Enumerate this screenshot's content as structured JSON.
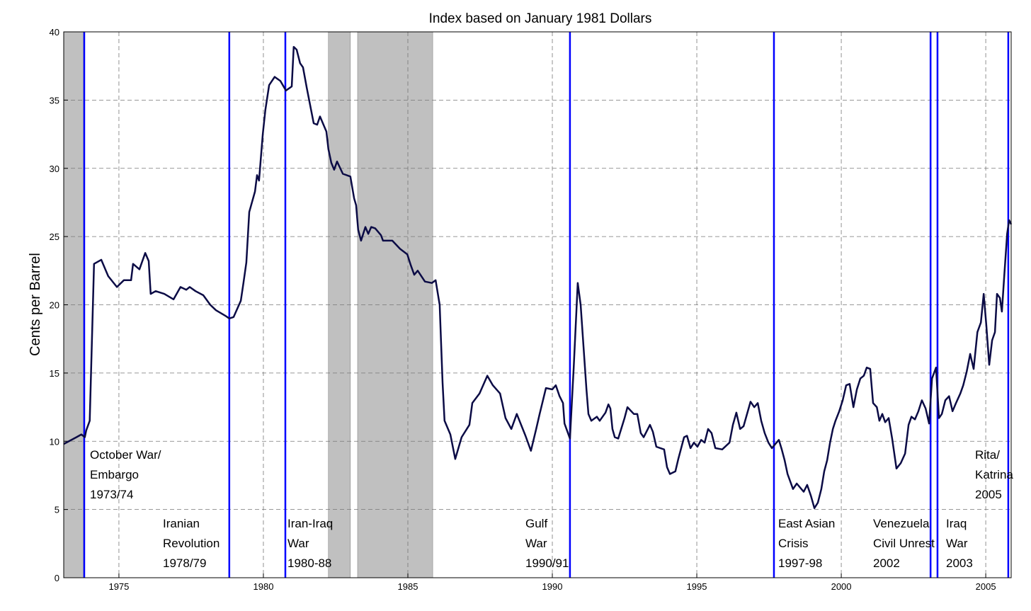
{
  "chart_data": {
    "type": "line",
    "title": "Index based on January 1981 Dollars",
    "y_label": "Cents per Barrel",
    "xlim": [
      1973.09,
      2005.88
    ],
    "xticks": [
      1975,
      1980,
      1985,
      1990,
      1995,
      2000,
      2005
    ],
    "ylim": [
      0,
      40
    ],
    "yticks": [
      0,
      5,
      10,
      15,
      20,
      25,
      30,
      35,
      40
    ],
    "grid": true,
    "shade_color": "#c0c0c0",
    "shaded_periods": [
      [
        1973.09,
        1973.77
      ],
      [
        1982.25,
        1983.01
      ],
      [
        1983.26,
        1985.86
      ]
    ],
    "event_color": "#0000ff",
    "events": [
      {
        "x": 1973.8,
        "label": [
          "October War/",
          "Embargo",
          "1973/74"
        ]
      },
      {
        "x": 1978.82,
        "label": [
          "Iranian",
          "Revolution",
          "1978/79"
        ]
      },
      {
        "x": 1980.76,
        "label": [
          "Iran-Iraq",
          "War",
          "1980-88"
        ]
      },
      {
        "x": 1990.61,
        "label": [
          "Gulf",
          "War",
          "1990/91"
        ]
      },
      {
        "x": 1997.67,
        "label": [
          "East Asian",
          "Crisis",
          "1997-98"
        ]
      },
      {
        "x": 2003.09,
        "label": [
          "Venezuela",
          "Civil Unrest",
          "2002"
        ]
      },
      {
        "x": 2003.33,
        "label": [
          "Iraq",
          "War",
          "2003"
        ]
      },
      {
        "x": 2005.78,
        "label": [
          "Rita/",
          "Katrina",
          "2005"
        ]
      }
    ],
    "x": [
      1973.09,
      1973.53,
      1973.7,
      1973.82,
      1973.87,
      1973.99,
      1974.14,
      1974.39,
      1974.63,
      1974.93,
      1975.17,
      1975.42,
      1975.49,
      1975.71,
      1975.91,
      1976.03,
      1976.1,
      1976.27,
      1976.57,
      1976.89,
      1977.13,
      1977.33,
      1977.45,
      1977.65,
      1977.92,
      1978.16,
      1978.36,
      1978.68,
      1978.82,
      1978.97,
      1979.22,
      1979.31,
      1979.41,
      1979.51,
      1979.71,
      1979.78,
      1979.85,
      1979.98,
      1980.07,
      1980.2,
      1980.39,
      1980.59,
      1980.78,
      1980.98,
      1981.05,
      1981.15,
      1981.27,
      1981.37,
      1981.5,
      1981.74,
      1981.86,
      1981.96,
      1982.18,
      1982.25,
      1982.35,
      1982.45,
      1982.55,
      1982.75,
      1983.01,
      1983.14,
      1983.21,
      1983.28,
      1983.38,
      1983.53,
      1983.63,
      1983.73,
      1983.87,
      1984.07,
      1984.14,
      1984.46,
      1984.73,
      1984.98,
      1985.1,
      1985.22,
      1985.34,
      1985.59,
      1985.83,
      1985.96,
      1986.1,
      1986.2,
      1986.27,
      1986.47,
      1986.64,
      1986.86,
      1987.13,
      1987.23,
      1987.48,
      1987.75,
      1987.94,
      1988.19,
      1988.38,
      1988.58,
      1988.77,
      1989.07,
      1989.26,
      1989.44,
      1989.56,
      1989.78,
      1990.0,
      1990.12,
      1990.25,
      1990.37,
      1990.42,
      1990.61,
      1990.74,
      1990.88,
      1990.98,
      1991.08,
      1991.18,
      1991.25,
      1991.35,
      1991.54,
      1991.64,
      1991.84,
      1991.94,
      1992.01,
      1992.08,
      1992.16,
      1992.28,
      1992.5,
      1992.6,
      1992.82,
      1992.94,
      1993.06,
      1993.16,
      1993.38,
      1993.48,
      1993.6,
      1993.87,
      1993.97,
      1994.07,
      1994.26,
      1994.36,
      1994.56,
      1994.66,
      1994.78,
      1994.9,
      1995.02,
      1995.15,
      1995.27,
      1995.39,
      1995.51,
      1995.64,
      1995.88,
      1996.13,
      1996.25,
      1996.37,
      1996.5,
      1996.62,
      1996.86,
      1996.99,
      1997.11,
      1997.23,
      1997.35,
      1997.48,
      1997.6,
      1997.72,
      1997.84,
      1997.94,
      1998.04,
      1998.14,
      1998.33,
      1998.46,
      1998.7,
      1998.82,
      1998.95,
      1999.07,
      1999.19,
      1999.31,
      1999.41,
      1999.51,
      1999.61,
      1999.71,
      1999.8,
      1999.93,
      2000.05,
      2000.17,
      2000.29,
      2000.42,
      2000.54,
      2000.66,
      2000.78,
      2000.88,
      2001.0,
      2001.1,
      2001.23,
      2001.32,
      2001.42,
      2001.52,
      2001.64,
      2001.76,
      2001.91,
      2002.06,
      2002.21,
      2002.33,
      2002.43,
      2002.55,
      2002.67,
      2002.79,
      2002.92,
      2003.04,
      2003.14,
      2003.28,
      2003.38,
      2003.48,
      2003.6,
      2003.73,
      2003.85,
      2003.97,
      2004.12,
      2004.22,
      2004.34,
      2004.46,
      2004.58,
      2004.71,
      2004.83,
      2004.93,
      2005.02,
      2005.12,
      2005.22,
      2005.32,
      2005.39,
      2005.49,
      2005.56,
      2005.64,
      2005.74,
      2005.81,
      2005.88
    ],
    "series": [
      {
        "color": "#0b0b45",
        "values": [
          9.8,
          10.3,
          10.5,
          10.3,
          10.8,
          11.5,
          23.0,
          23.3,
          22.1,
          21.3,
          21.8,
          21.8,
          23.0,
          22.6,
          23.8,
          23.2,
          20.8,
          21.0,
          20.8,
          20.4,
          21.3,
          21.1,
          21.3,
          21.0,
          20.7,
          20.0,
          19.6,
          19.2,
          19.0,
          19.1,
          20.3,
          21.6,
          23.1,
          26.8,
          28.3,
          29.5,
          29.1,
          32.5,
          34.3,
          36.1,
          36.7,
          36.4,
          35.7,
          36.0,
          38.9,
          38.7,
          37.7,
          37.4,
          35.9,
          33.3,
          33.2,
          33.8,
          32.7,
          31.4,
          30.4,
          29.9,
          30.5,
          29.6,
          29.4,
          27.8,
          27.3,
          25.5,
          24.7,
          25.7,
          25.2,
          25.7,
          25.6,
          25.1,
          24.7,
          24.7,
          24.1,
          23.7,
          22.9,
          22.2,
          22.5,
          21.7,
          21.6,
          21.8,
          20.0,
          14.3,
          11.5,
          10.5,
          8.7,
          10.3,
          11.2,
          12.8,
          13.5,
          14.8,
          14.1,
          13.5,
          11.7,
          10.9,
          12.0,
          10.4,
          9.3,
          10.9,
          12.0,
          13.9,
          13.8,
          14.1,
          13.3,
          12.8,
          11.3,
          10.2,
          15.4,
          21.6,
          20.0,
          16.9,
          13.8,
          12.0,
          11.5,
          11.8,
          11.5,
          12.1,
          12.7,
          12.4,
          10.9,
          10.3,
          10.2,
          11.7,
          12.5,
          12.0,
          12.0,
          10.6,
          10.3,
          11.2,
          10.7,
          9.6,
          9.4,
          8.1,
          7.6,
          7.8,
          8.7,
          10.3,
          10.4,
          9.5,
          9.9,
          9.6,
          10.1,
          9.9,
          10.9,
          10.6,
          9.5,
          9.4,
          9.9,
          11.2,
          12.1,
          10.9,
          11.1,
          12.9,
          12.5,
          12.8,
          11.5,
          10.6,
          9.9,
          9.5,
          9.8,
          10.1,
          9.4,
          8.6,
          7.6,
          6.5,
          6.9,
          6.3,
          6.8,
          6.0,
          5.1,
          5.5,
          6.5,
          7.8,
          8.6,
          9.9,
          10.9,
          11.5,
          12.2,
          13.0,
          14.1,
          14.2,
          12.5,
          13.8,
          14.6,
          14.8,
          15.4,
          15.3,
          12.8,
          12.5,
          11.5,
          12.0,
          11.4,
          11.7,
          10.2,
          8.0,
          8.4,
          9.1,
          11.2,
          11.8,
          11.6,
          12.2,
          13.0,
          12.4,
          11.3,
          14.6,
          15.4,
          11.7,
          12.0,
          13.0,
          13.3,
          12.2,
          12.8,
          13.5,
          14.1,
          15.1,
          16.4,
          15.3,
          18.0,
          18.7,
          20.8,
          18.5,
          15.6,
          17.4,
          18.0,
          20.8,
          20.5,
          19.5,
          22.1,
          25.2,
          26.2,
          25.9
        ]
      }
    ]
  }
}
